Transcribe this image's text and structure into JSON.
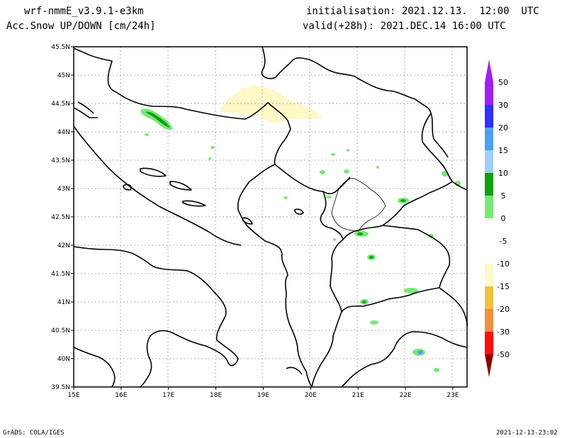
{
  "header": {
    "model": "wrf-nmmE_v3.9.1-e3km",
    "field": "h Acc.Snow UP/DOWN [cm/24h]",
    "init": "initialisation: 2021.12.13.  12:00  UTC",
    "valid": "valid(+28h): 2021.DEC.14 16:00 UTC"
  },
  "footer": {
    "credit": "GrADS: COLA/IGES",
    "timestamp": "2021-12-13-23:02"
  },
  "map": {
    "lon_ticks": [
      "15E",
      "16E",
      "17E",
      "18E",
      "19E",
      "20E",
      "21E",
      "22E",
      "23E"
    ],
    "lat_ticks": [
      "45.5N",
      "45N",
      "44.5N",
      "44N",
      "43.5N",
      "43N",
      "42.5N",
      "42N",
      "41.5N",
      "41N",
      "40.5N",
      "40N",
      "39.5N"
    ],
    "lon_range": [
      15,
      23.3
    ],
    "lat_range": [
      39.5,
      45.5
    ],
    "grid": true
  },
  "colorbar": {
    "levels": [
      {
        "label": "50",
        "color": "#a020f0"
      },
      {
        "label": "30",
        "color": "#3030ff"
      },
      {
        "label": "20",
        "color": "#50a0f0"
      },
      {
        "label": "15",
        "color": "#a0d0f8"
      },
      {
        "label": "10",
        "color": "#10a010"
      },
      {
        "label": "5",
        "color": "#78e878"
      },
      {
        "label": "0",
        "color": "#ffffff"
      },
      {
        "label": "-5",
        "color": "#ffffff"
      },
      {
        "label": "-10",
        "color": "#fff8c8"
      },
      {
        "label": "-15",
        "color": "#f0c040"
      },
      {
        "label": "-20",
        "color": "#f09040"
      },
      {
        "label": "-30",
        "color": "#ff1010"
      },
      {
        "label": "-50",
        "color": "#c00000"
      }
    ],
    "top_color": "#a020f0",
    "bottom_color": "#900000"
  }
}
